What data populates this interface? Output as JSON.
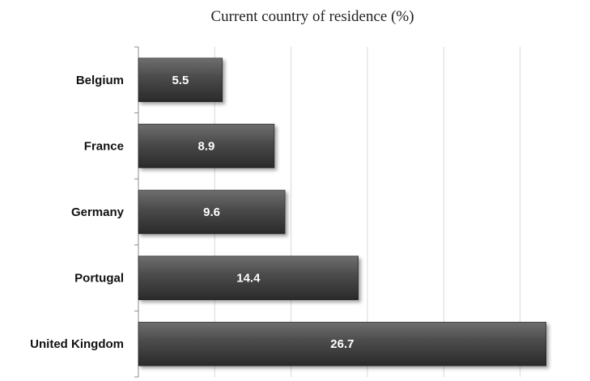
{
  "chart_data": {
    "type": "bar",
    "orientation": "horizontal",
    "title": "Current country of residence (%)",
    "categories": [
      "Belgium",
      "France",
      "Germany",
      "Portugal",
      "United Kingdom"
    ],
    "values": [
      5.5,
      8.9,
      9.6,
      14.4,
      26.7
    ],
    "data_labels": [
      "5.5",
      "8.9",
      "9.6",
      "14.4",
      "26.7"
    ],
    "xlim": [
      0,
      30
    ],
    "xticks": [
      0,
      5,
      10,
      15,
      20,
      25,
      30
    ],
    "grid": true,
    "legend": "none",
    "colors": {
      "bar_top": "#6e6e6e",
      "bar_mid": "#4a4a4a",
      "bar_bottom": "#2a2a2a",
      "gridline": "#d9d9d9",
      "axis": "#8c8c8c"
    }
  }
}
